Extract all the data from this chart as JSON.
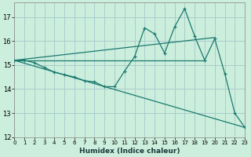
{
  "xlabel": "Humidex (Indice chaleur)",
  "background_color": "#cceedd",
  "grid_color": "#aacccc",
  "line_color": "#1a7a6e",
  "xlim": [
    0,
    23
  ],
  "ylim": [
    12,
    17.6
  ],
  "yticks": [
    12,
    13,
    14,
    15,
    16,
    17
  ],
  "xticks": [
    0,
    1,
    2,
    3,
    4,
    5,
    6,
    7,
    8,
    9,
    10,
    11,
    12,
    13,
    14,
    15,
    16,
    17,
    18,
    19,
    20,
    21,
    22,
    23
  ],
  "series1_x": [
    0,
    1,
    2,
    3,
    4,
    5,
    6,
    7,
    8,
    9,
    10,
    11,
    12,
    13,
    14,
    15,
    16,
    17,
    18,
    19,
    20,
    21,
    22,
    23
  ],
  "series1_y": [
    15.2,
    15.2,
    15.1,
    14.9,
    14.7,
    14.6,
    14.5,
    14.35,
    14.3,
    14.1,
    14.1,
    14.75,
    15.35,
    16.55,
    16.3,
    15.5,
    16.6,
    17.35,
    16.2,
    15.2,
    16.1,
    14.65,
    13.0,
    12.4
  ],
  "series2_x": [
    0,
    19
  ],
  "series2_y": [
    15.2,
    15.2
  ],
  "series3_x": [
    0,
    20
  ],
  "series3_y": [
    15.2,
    16.15
  ],
  "series4_x": [
    0,
    23
  ],
  "series4_y": [
    15.2,
    12.4
  ]
}
